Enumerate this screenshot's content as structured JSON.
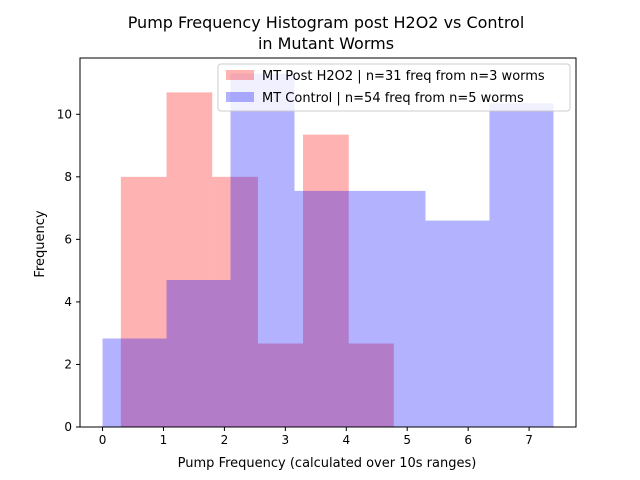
{
  "chart_data": {
    "type": "bar",
    "title_lines": [
      "Pump Frequency Histogram post H2O2 vs Control",
      "in Mutant Worms"
    ],
    "xlabel": "Pump Frequency (calculated over 10s ranges)",
    "ylabel": "Frequency",
    "xlim": [
      -0.37,
      7.77
    ],
    "ylim": [
      0,
      11.8
    ],
    "xticks": [
      0,
      1,
      2,
      3,
      4,
      5,
      6,
      7
    ],
    "yticks": [
      0,
      2,
      4,
      6,
      8,
      10
    ],
    "grid": false,
    "legend_position": "top-right",
    "series": [
      {
        "name": "MT Post H2O2 | n=31 freq from n=3 worms",
        "color": "#ff0000",
        "opacity": 0.3,
        "bins": [
          {
            "x0": 0.3,
            "x1": 1.05,
            "value": 8.0
          },
          {
            "x0": 1.05,
            "x1": 1.8,
            "value": 10.7
          },
          {
            "x0": 1.8,
            "x1": 2.55,
            "value": 8.0
          },
          {
            "x0": 2.55,
            "x1": 3.29,
            "value": 2.67
          },
          {
            "x0": 3.29,
            "x1": 4.04,
            "value": 9.35
          },
          {
            "x0": 4.04,
            "x1": 4.78,
            "value": 2.67
          }
        ]
      },
      {
        "name": "MT Control | n=54 freq from n=5 worms",
        "color": "#0000ff",
        "opacity": 0.3,
        "bins": [
          {
            "x0": 0.0,
            "x1": 1.05,
            "value": 2.83
          },
          {
            "x0": 1.05,
            "x1": 2.1,
            "value": 4.7
          },
          {
            "x0": 2.1,
            "x1": 3.15,
            "value": 11.3
          },
          {
            "x0": 3.15,
            "x1": 4.2,
            "value": 7.55
          },
          {
            "x0": 4.2,
            "x1": 5.3,
            "value": 7.55
          },
          {
            "x0": 5.3,
            "x1": 6.35,
            "value": 6.6
          },
          {
            "x0": 6.35,
            "x1": 7.4,
            "value": 10.35
          }
        ]
      }
    ]
  }
}
